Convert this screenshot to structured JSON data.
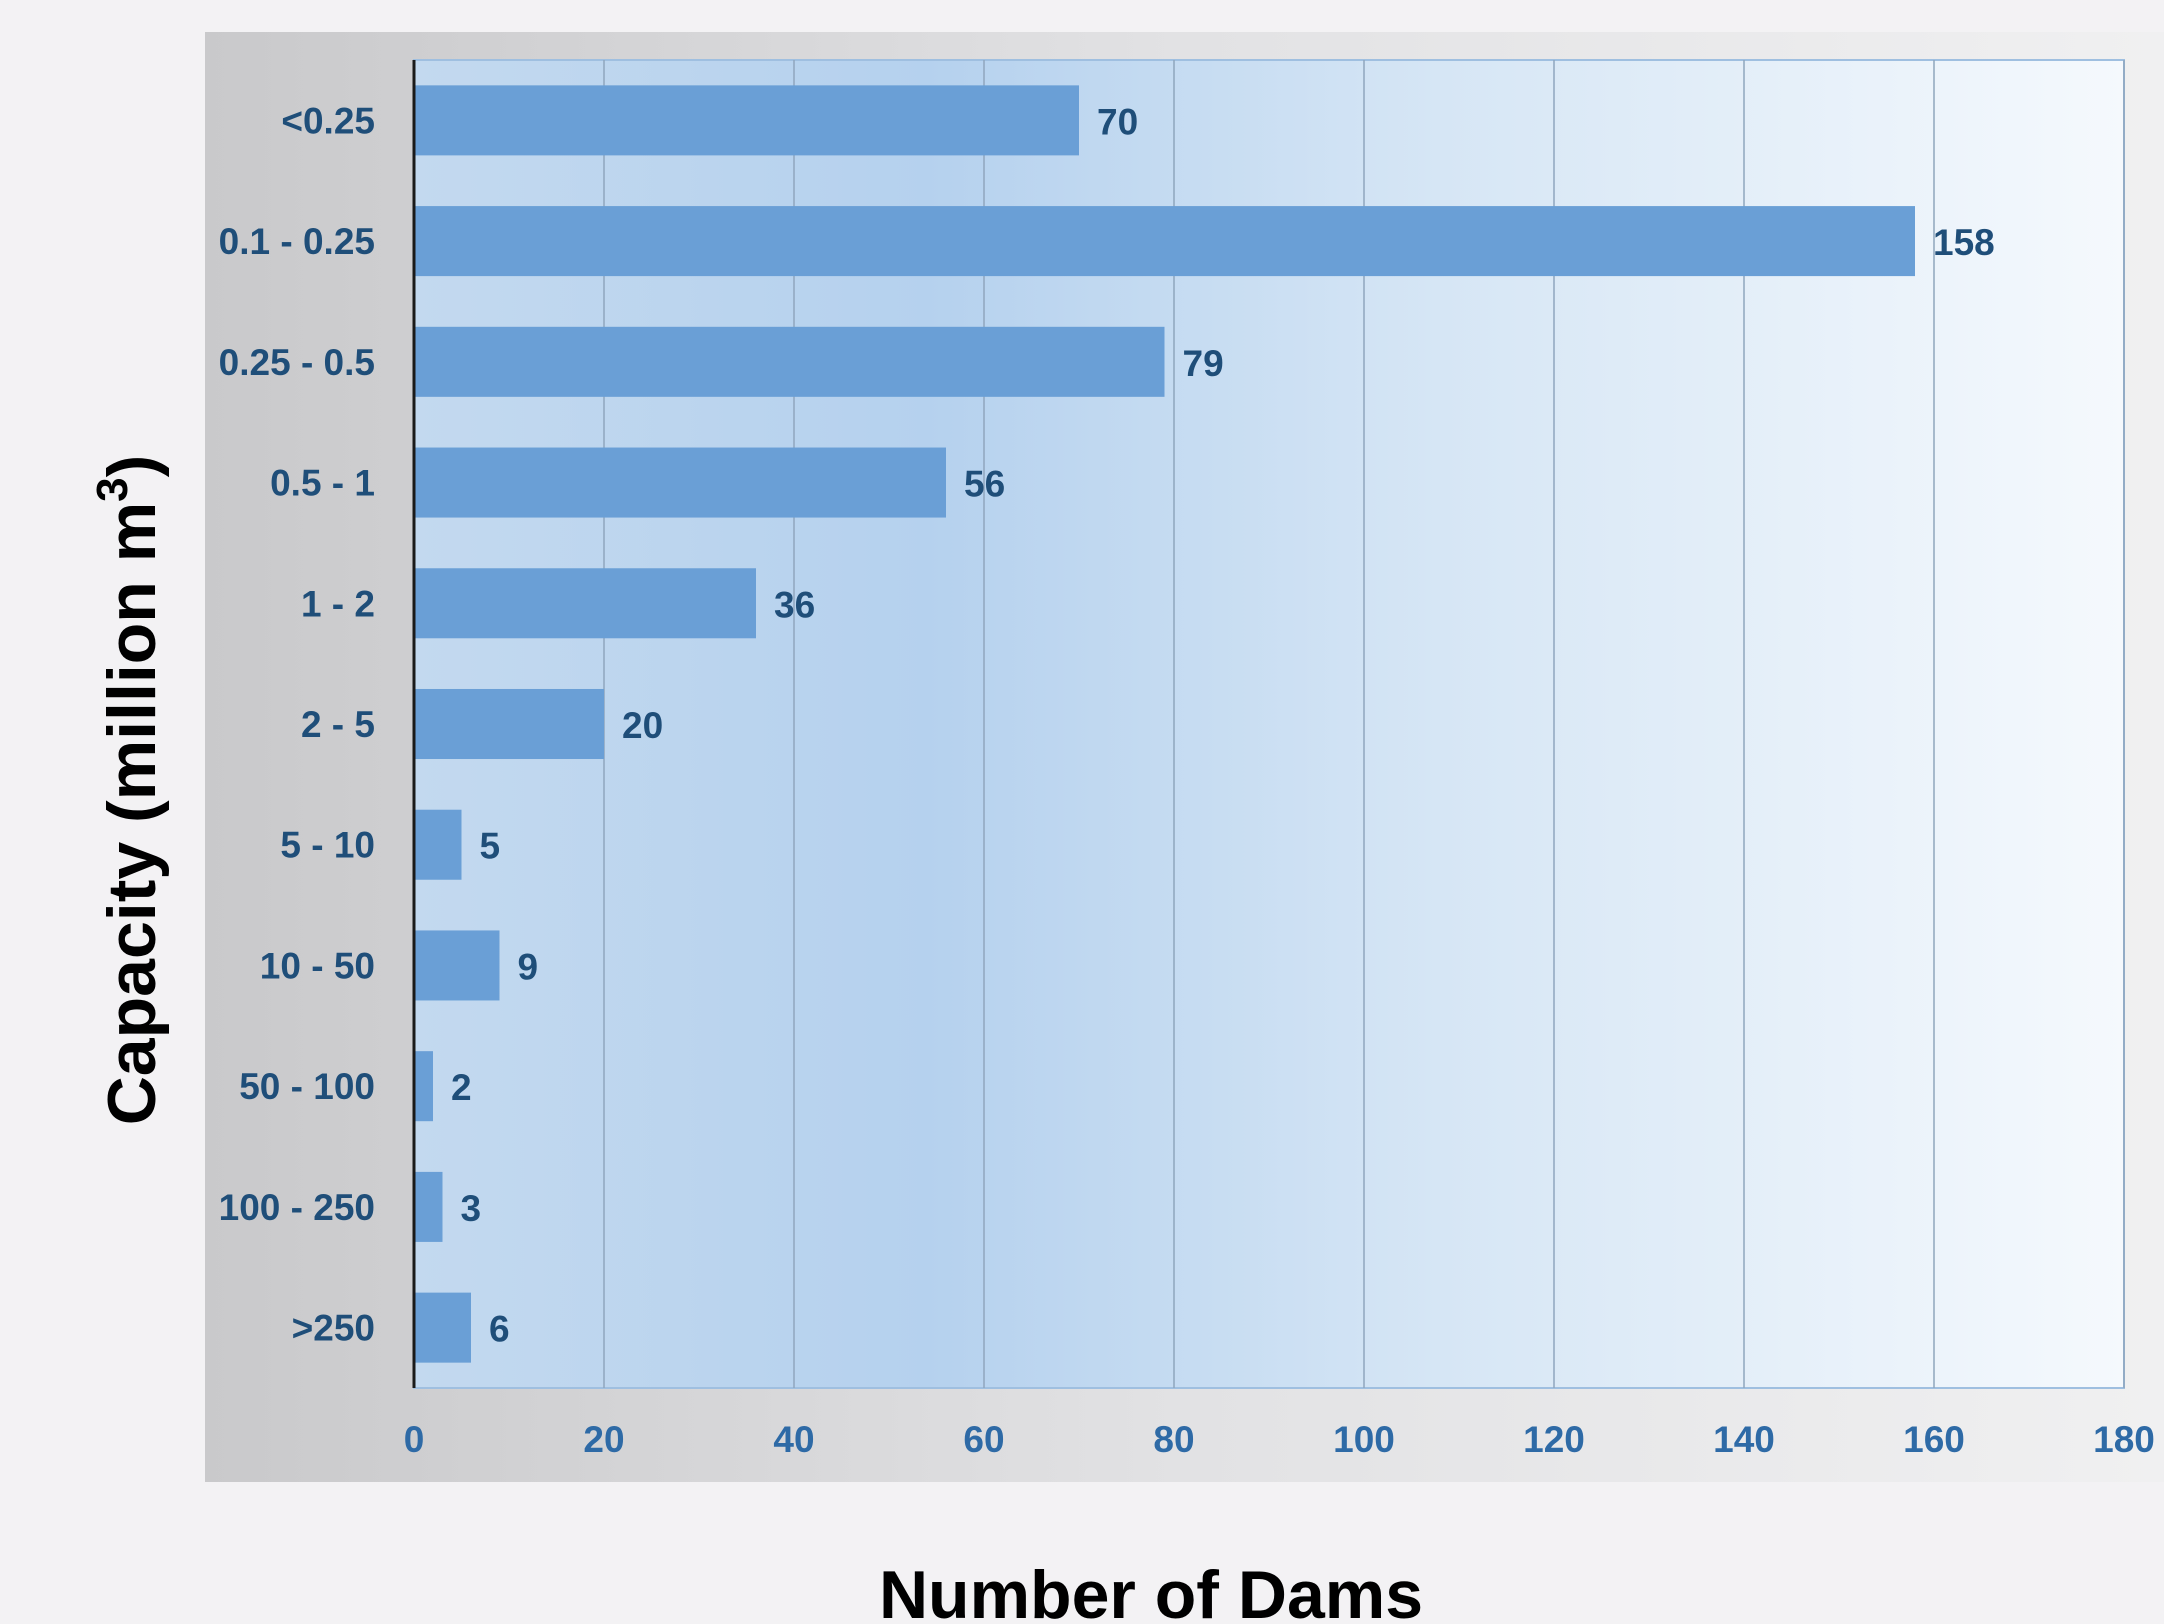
{
  "chart_data": {
    "type": "bar",
    "orientation": "horizontal",
    "categories": [
      "<0.25",
      "0.1 - 0.25",
      "0.25 - 0.5",
      "0.5 - 1",
      "1 - 2",
      "2 - 5",
      "5 - 10",
      "10 - 50",
      "50 - 100",
      "100 - 250",
      ">250"
    ],
    "values": [
      70,
      158,
      79,
      56,
      36,
      20,
      5,
      9,
      2,
      3,
      6
    ],
    "xlabel": "Number of Dams",
    "ylabel": "Capacity (million m",
    "ylabel_superscript": "3",
    "ylabel_close": ")",
    "xlim": [
      0,
      180
    ],
    "xticks": [
      0,
      20,
      40,
      60,
      80,
      100,
      120,
      140,
      160,
      180
    ],
    "grid": true,
    "legend": "none",
    "bar_color": "#6a9fd6",
    "label_color": "#1f4e79",
    "tick_color": "#2e6aa6"
  }
}
